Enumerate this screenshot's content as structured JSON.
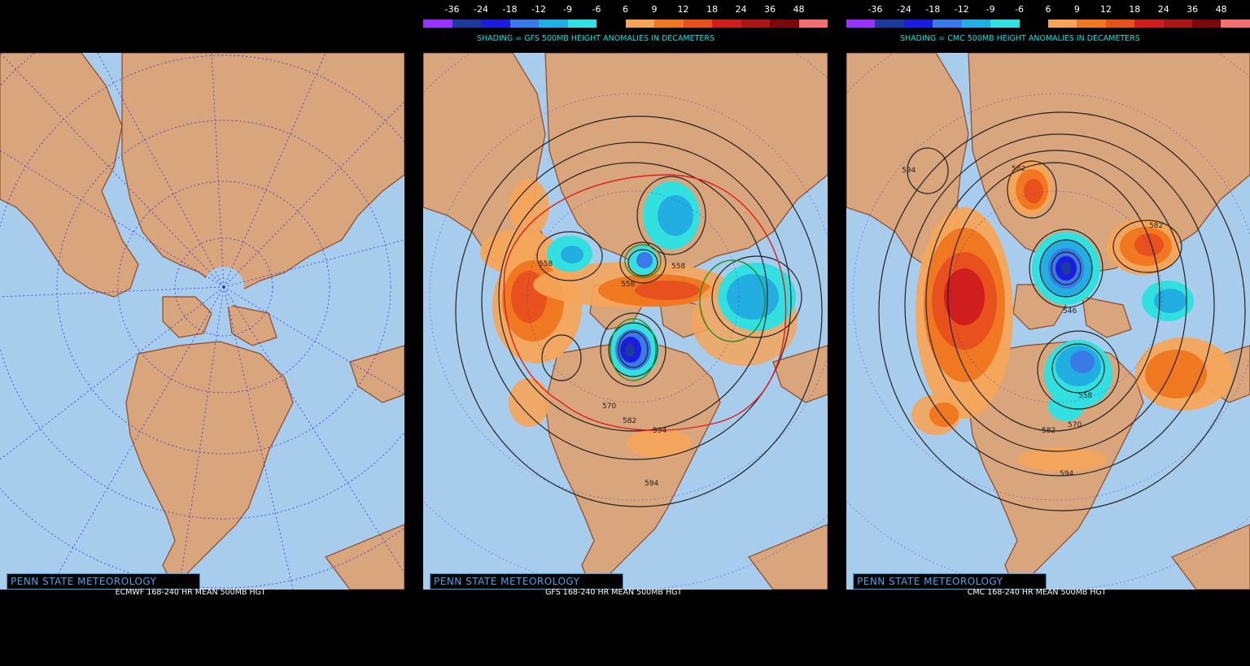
{
  "colorbar": {
    "labels": [
      "-36",
      "-24",
      "-18",
      "-12",
      "-9",
      "-6",
      "6",
      "9",
      "12",
      "18",
      "24",
      "36",
      "48"
    ],
    "colors": [
      "#9933ff",
      "#1a3a9c",
      "#1c1cdd",
      "#3a7ae8",
      "#22aee0",
      "#33e0e0",
      "#000000",
      "#f5a55a",
      "#f07820",
      "#e8501e",
      "#d01e1e",
      "#a81616",
      "#7a0a0a",
      "#f07070"
    ]
  },
  "panels": [
    {
      "model": "ecmwf",
      "shading_title": "",
      "brand": "PENN STATE METEOROLOGY",
      "subtitle": "ECMWF 168-240 HR MEAN 500MB HGT",
      "contour_labels": []
    },
    {
      "model": "gfs",
      "shading_title": "SHADING = GFS 500MB HEIGHT ANOMALIES IN DECAMETERS",
      "brand": "PENN STATE METEOROLOGY",
      "subtitle": "GFS 168-240 HR MEAN 500MB HGT",
      "contour_labels": [
        "558",
        "558",
        "558",
        "570",
        "582",
        "594",
        "594"
      ]
    },
    {
      "model": "cmc",
      "shading_title": "SHADING = CMC 500MB HEIGHT ANOMALIES IN DECAMETERS",
      "brand": "PENN STATE METEOROLOGY",
      "subtitle": "CMC 168-240 HR MEAN 500MB HGT",
      "contour_labels": [
        "594",
        "582",
        "582",
        "546",
        "558",
        "582",
        "570",
        "594"
      ]
    }
  ],
  "colors": {
    "ocean": "#a8ccec",
    "land": "#d9a57c",
    "border": "#8b4a2b",
    "grid": "#2222ee"
  }
}
